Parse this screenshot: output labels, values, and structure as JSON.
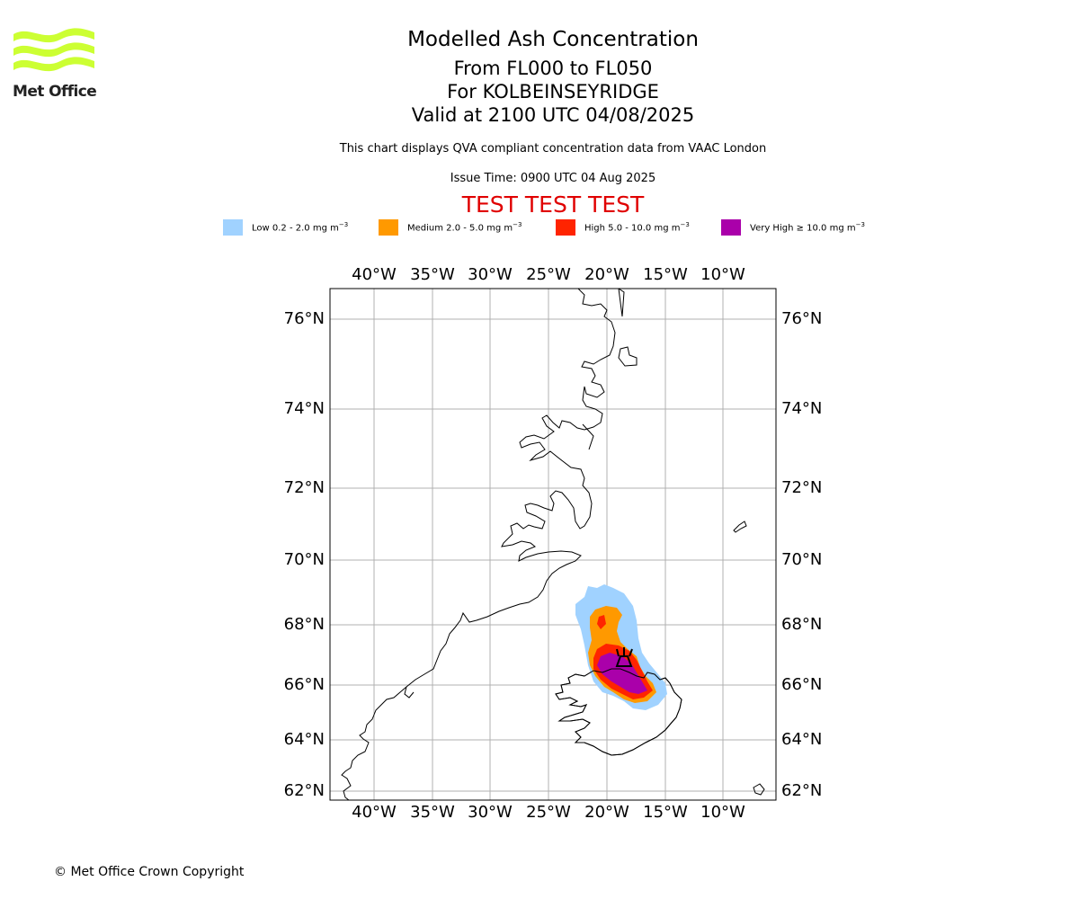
{
  "header": {
    "logo_text": "Met Office",
    "title": "Modelled Ash Concentration",
    "subtitle_levels": "From FL000 to FL050",
    "subtitle_location": "For KOLBEINSEYRIDGE",
    "subtitle_valid": "Valid at 2100 UTC 04/08/2025",
    "note": "This chart displays QVA compliant concentration data from VAAC London",
    "issue_time": "Issue Time: 0900 UTC 04 Aug 2025",
    "test_banner": "TEST TEST TEST"
  },
  "legend": [
    {
      "label": "Low 0.2 - 2.0 mg m",
      "unit_exp": "−3",
      "color": "#a0d2ff"
    },
    {
      "label": "Medium 2.0 - 5.0 mg m",
      "unit_exp": "−3",
      "color": "#ff9900"
    },
    {
      "label": "High 5.0 - 10.0 mg m",
      "unit_exp": "−3",
      "color": "#ff2400"
    },
    {
      "label": "Very High  ≥  10.0 mg m",
      "unit_exp": "−3",
      "color": "#aa00aa"
    }
  ],
  "map": {
    "lon_ticks": [
      "40°W",
      "35°W",
      "30°W",
      "25°W",
      "20°W",
      "15°W",
      "10°W"
    ],
    "lat_ticks": [
      "76°N",
      "74°N",
      "72°N",
      "70°N",
      "68°N",
      "66°N",
      "64°N",
      "62°N"
    ],
    "gridline_color": "#b0b0b0",
    "coast_color": "#000000",
    "volcano_icon": "volcano-symbol-icon"
  },
  "footer": {
    "copyright": "© Met Office Crown Copyright"
  }
}
